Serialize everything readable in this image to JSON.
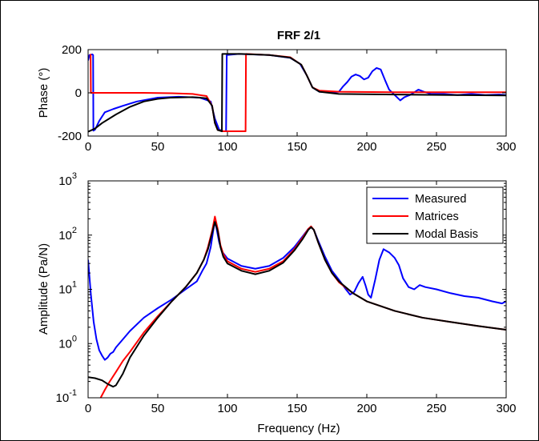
{
  "chart_data": [
    {
      "type": "line",
      "title": "FRF 2/1",
      "xlabel": "",
      "ylabel": "Phase (°)",
      "xlim": [
        0,
        300
      ],
      "ylim": [
        -200,
        200
      ],
      "x_ticks": [
        "0",
        "50",
        "100",
        "150",
        "200",
        "250",
        "300"
      ],
      "y_ticks": [
        "-200",
        "0",
        "200"
      ],
      "x_tick_values": [
        0,
        50,
        100,
        150,
        200,
        250,
        300
      ],
      "y_tick_values": [
        -200,
        0,
        200
      ],
      "grid": false,
      "series": [
        {
          "color": "#0000ff",
          "points": [
            [
              0,
              150
            ],
            [
              1,
              175
            ],
            [
              3,
              178
            ],
            [
              3.6,
              175
            ],
            [
              3.8,
              -175
            ],
            [
              5,
              -170
            ],
            [
              8,
              -130
            ],
            [
              12,
              -90
            ],
            [
              18,
              -75
            ],
            [
              25,
              -60
            ],
            [
              35,
              -40
            ],
            [
              50,
              -22
            ],
            [
              65,
              -18
            ],
            [
              80,
              -22
            ],
            [
              88,
              -40
            ],
            [
              91,
              -120
            ],
            [
              94,
              -170
            ],
            [
              97,
              -178
            ],
            [
              99,
              -178
            ],
            [
              99.5,
              175
            ],
            [
              108,
              180
            ],
            [
              130,
              175
            ],
            [
              145,
              162
            ],
            [
              152,
              135
            ],
            [
              157,
              80
            ],
            [
              161,
              25
            ],
            [
              166,
              5
            ],
            [
              175,
              2
            ],
            [
              180,
              5
            ],
            [
              183,
              30
            ],
            [
              186,
              50
            ],
            [
              189,
              75
            ],
            [
              192,
              85
            ],
            [
              195,
              78
            ],
            [
              198,
              62
            ],
            [
              201,
              70
            ],
            [
              204,
              100
            ],
            [
              207,
              115
            ],
            [
              210,
              108
            ],
            [
              213,
              60
            ],
            [
              216,
              15
            ],
            [
              220,
              -10
            ],
            [
              224,
              -35
            ],
            [
              227,
              -20
            ],
            [
              231,
              -10
            ],
            [
              234,
              2
            ],
            [
              237,
              15
            ],
            [
              241,
              5
            ],
            [
              246,
              -5
            ],
            [
              255,
              -5
            ],
            [
              265,
              -10
            ],
            [
              275,
              -5
            ],
            [
              285,
              -10
            ],
            [
              295,
              -8
            ],
            [
              300,
              -10
            ]
          ]
        },
        {
          "color": "#ff0000",
          "points": [
            [
              1.8,
              180
            ],
            [
              2,
              0
            ],
            [
              20,
              0
            ],
            [
              40,
              0
            ],
            [
              60,
              -2
            ],
            [
              75,
              -5
            ],
            [
              85,
              -15
            ],
            [
              89,
              -60
            ],
            [
              91,
              -140
            ],
            [
              93,
              -172
            ],
            [
              97,
              -178
            ],
            [
              113,
              -178
            ],
            [
              113.3,
              180
            ],
            [
              130,
              175
            ],
            [
              145,
              165
            ],
            [
              153,
              130
            ],
            [
              157,
              80
            ],
            [
              161,
              25
            ],
            [
              166,
              10
            ],
            [
              180,
              5
            ],
            [
              220,
              3
            ],
            [
              260,
              3
            ],
            [
              300,
              3
            ]
          ]
        },
        {
          "color": "#000000",
          "points": [
            [
              0,
              -180
            ],
            [
              5,
              -165
            ],
            [
              10,
              -140
            ],
            [
              20,
              -100
            ],
            [
              30,
              -65
            ],
            [
              40,
              -40
            ],
            [
              50,
              -28
            ],
            [
              60,
              -22
            ],
            [
              75,
              -20
            ],
            [
              85,
              -25
            ],
            [
              89,
              -60
            ],
            [
              91,
              -140
            ],
            [
              93,
              -172
            ],
            [
              96,
              -178
            ],
            [
              96.3,
              180
            ],
            [
              110,
              180
            ],
            [
              130,
              175
            ],
            [
              145,
              163
            ],
            [
              153,
              130
            ],
            [
              157,
              80
            ],
            [
              161,
              25
            ],
            [
              166,
              5
            ],
            [
              180,
              -5
            ],
            [
              220,
              -8
            ],
            [
              260,
              -10
            ],
            [
              300,
              -12
            ]
          ]
        }
      ]
    },
    {
      "type": "line",
      "title": "",
      "xlabel": "Frequency (Hz)",
      "ylabel": "Amplitude (Pa/N)",
      "xlim": [
        0,
        300
      ],
      "ylim": [
        0.1,
        1000
      ],
      "yscale": "log",
      "x_ticks": [
        "0",
        "50",
        "100",
        "150",
        "200",
        "250",
        "300"
      ],
      "x_tick_values": [
        0,
        50,
        100,
        150,
        200,
        250,
        300
      ],
      "y_tick_exponents": [
        "-1",
        "0",
        "1",
        "2",
        "3"
      ],
      "y_tick_values": [
        0.1,
        1,
        10,
        100,
        1000
      ],
      "grid": false,
      "legend": "top-right",
      "series": [
        {
          "name": "Measured",
          "color": "#0000ff",
          "points": [
            [
              0,
              35
            ],
            [
              2,
              8
            ],
            [
              4,
              2.5
            ],
            [
              6,
              1.2
            ],
            [
              8,
              0.75
            ],
            [
              10,
              0.6
            ],
            [
              12,
              0.5
            ],
            [
              14,
              0.55
            ],
            [
              16,
              0.65
            ],
            [
              18,
              0.7
            ],
            [
              20,
              0.85
            ],
            [
              25,
              1.2
            ],
            [
              30,
              1.7
            ],
            [
              40,
              3
            ],
            [
              50,
              4.5
            ],
            [
              60,
              6.5
            ],
            [
              70,
              10
            ],
            [
              78,
              14
            ],
            [
              82,
              22
            ],
            [
              85,
              30
            ],
            [
              88,
              60
            ],
            [
              90,
              130
            ],
            [
              91,
              180
            ],
            [
              92,
              140
            ],
            [
              94,
              75
            ],
            [
              96,
              50
            ],
            [
              100,
              37
            ],
            [
              110,
              27
            ],
            [
              120,
              24
            ],
            [
              130,
              27
            ],
            [
              140,
              38
            ],
            [
              148,
              60
            ],
            [
              154,
              95
            ],
            [
              158,
              130
            ],
            [
              160,
              140
            ],
            [
              162,
              125
            ],
            [
              165,
              80
            ],
            [
              170,
              40
            ],
            [
              175,
              22
            ],
            [
              180,
              15
            ],
            [
              185,
              10
            ],
            [
              188,
              8
            ],
            [
              191,
              9
            ],
            [
              194,
              13
            ],
            [
              197,
              17
            ],
            [
              199,
              12
            ],
            [
              201,
              8
            ],
            [
              203,
              7
            ],
            [
              206,
              15
            ],
            [
              209,
              35
            ],
            [
              212,
              55
            ],
            [
              216,
              48
            ],
            [
              220,
              38
            ],
            [
              223,
              28
            ],
            [
              226,
              16
            ],
            [
              230,
              11
            ],
            [
              234,
              10
            ],
            [
              238,
              12
            ],
            [
              242,
              11
            ],
            [
              250,
              10
            ],
            [
              260,
              8.5
            ],
            [
              270,
              7.5
            ],
            [
              280,
              7
            ],
            [
              290,
              6
            ],
            [
              297,
              5.5
            ],
            [
              300,
              6
            ]
          ]
        },
        {
          "name": "Matrices",
          "color": "#ff0000",
          "points": [
            [
              9,
              0.1
            ],
            [
              12,
              0.14
            ],
            [
              15,
              0.19
            ],
            [
              20,
              0.3
            ],
            [
              25,
              0.48
            ],
            [
              30,
              0.7
            ],
            [
              40,
              1.6
            ],
            [
              50,
              3.2
            ],
            [
              60,
              6
            ],
            [
              70,
              11
            ],
            [
              78,
              20
            ],
            [
              83,
              35
            ],
            [
              86,
              60
            ],
            [
              89,
              120
            ],
            [
              91,
              220
            ],
            [
              93,
              130
            ],
            [
              95,
              65
            ],
            [
              97,
              45
            ],
            [
              100,
              33
            ],
            [
              110,
              24
            ],
            [
              120,
              21
            ],
            [
              130,
              24
            ],
            [
              140,
              33
            ],
            [
              148,
              55
            ],
            [
              154,
              90
            ],
            [
              158,
              130
            ],
            [
              160,
              145
            ],
            [
              162,
              125
            ],
            [
              165,
              75
            ],
            [
              170,
              35
            ],
            [
              175,
              20
            ],
            [
              180,
              13.5
            ],
            [
              190,
              8.5
            ],
            [
              200,
              6
            ],
            [
              220,
              4
            ],
            [
              240,
              3
            ],
            [
              260,
              2.5
            ],
            [
              280,
              2.1
            ],
            [
              300,
              1.8
            ]
          ]
        },
        {
          "name": "Modal Basis",
          "color": "#000000",
          "points": [
            [
              0,
              0.24
            ],
            [
              5,
              0.23
            ],
            [
              10,
              0.21
            ],
            [
              14,
              0.18
            ],
            [
              18,
              0.16
            ],
            [
              20,
              0.17
            ],
            [
              25,
              0.28
            ],
            [
              30,
              0.55
            ],
            [
              40,
              1.4
            ],
            [
              50,
              3
            ],
            [
              60,
              6
            ],
            [
              70,
              11
            ],
            [
              78,
              20
            ],
            [
              83,
              35
            ],
            [
              86,
              55
            ],
            [
              89,
              110
            ],
            [
              91,
              175
            ],
            [
              93,
              120
            ],
            [
              95,
              60
            ],
            [
              97,
              40
            ],
            [
              100,
              30
            ],
            [
              110,
              22
            ],
            [
              120,
              19
            ],
            [
              130,
              22
            ],
            [
              140,
              31
            ],
            [
              148,
              52
            ],
            [
              154,
              85
            ],
            [
              158,
              125
            ],
            [
              160,
              140
            ],
            [
              162,
              125
            ],
            [
              165,
              75
            ],
            [
              170,
              35
            ],
            [
              175,
              20
            ],
            [
              180,
              14
            ],
            [
              190,
              8.5
            ],
            [
              200,
              6
            ],
            [
              220,
              4
            ],
            [
              240,
              3
            ],
            [
              260,
              2.5
            ],
            [
              280,
              2.1
            ],
            [
              300,
              1.8
            ]
          ]
        }
      ]
    }
  ]
}
